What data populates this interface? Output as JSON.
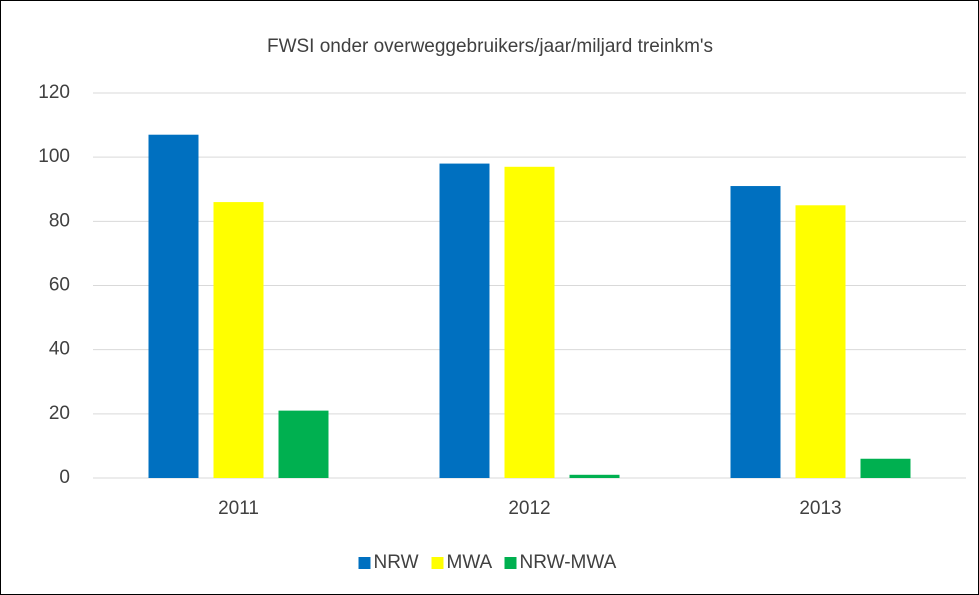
{
  "chart_data": {
    "type": "bar",
    "title": "FWSI onder overweggebruikers/jaar/miljard treinkm's",
    "categories": [
      "2011",
      "2012",
      "2013"
    ],
    "series": [
      {
        "name": "NRW",
        "color": "#0070c0",
        "values": [
          107,
          98,
          91
        ]
      },
      {
        "name": "MWA",
        "color": "#ffff00",
        "values": [
          86,
          97,
          85
        ]
      },
      {
        "name": "NRW-MWA",
        "color": "#00b050",
        "values": [
          21,
          1,
          6
        ]
      }
    ],
    "ylim": [
      0,
      120
    ],
    "yticks": [
      0,
      20,
      40,
      60,
      80,
      100,
      120
    ],
    "grid": true,
    "legend": "bottom"
  }
}
